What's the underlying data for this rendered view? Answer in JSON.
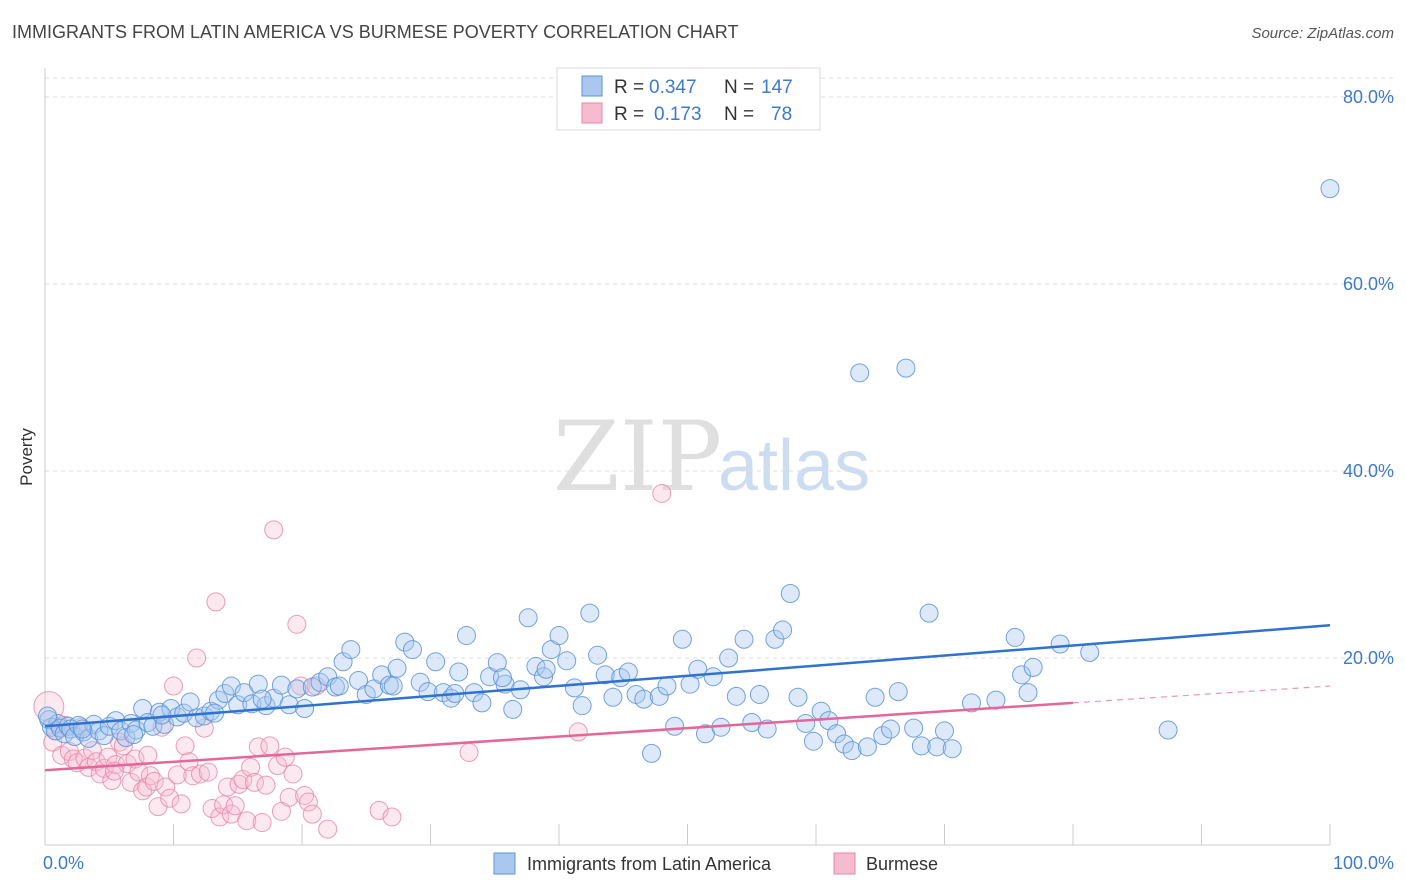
{
  "title": "IMMIGRANTS FROM LATIN AMERICA VS BURMESE POVERTY CORRELATION CHART",
  "source": "Source: ZipAtlas.com",
  "watermark": {
    "zip": "ZIP",
    "atlas": "atlas"
  },
  "legend": {
    "series": [
      {
        "r_label": "R =",
        "r_value": "0.347",
        "n_label": "N =",
        "n_value": "147"
      },
      {
        "r_label": "R =",
        "r_value": "0.173",
        "n_label": "N =",
        "n_value": "78"
      }
    ]
  },
  "colors": {
    "blue_fill": "#aac8ef",
    "blue_stroke": "#5b93d6",
    "blue_line": "#2f72d0",
    "pink_fill": "#f5bcd0",
    "pink_stroke": "#e785a8",
    "pink_line": "#e5679a",
    "tick_text": "#3d7ac9",
    "grid": "#dddddd"
  },
  "chart_data": {
    "type": "scatter",
    "title": "IMMIGRANTS FROM LATIN AMERICA VS BURMESE POVERTY CORRELATION CHART",
    "xlabel": "",
    "ylabel": "Poverty",
    "xlim": [
      0,
      100
    ],
    "ylim": [
      0,
      80
    ],
    "x_tick_labels": [
      "0.0%",
      "100.0%"
    ],
    "y_ticks": [
      20,
      40,
      60,
      80
    ],
    "y_tick_labels": [
      "20.0%",
      "40.0%",
      "60.0%",
      "80.0%"
    ],
    "grid": true,
    "series": [
      {
        "name": "Immigrants from Latin America",
        "color": "#5b93d6",
        "r": 0.347,
        "n": 147,
        "trend": {
          "x": [
            0,
            100
          ],
          "y": [
            12.7,
            23.5
          ]
        },
        "points": [
          [
            0.3,
            13.4
          ],
          [
            0.5,
            12.6
          ],
          [
            0.8,
            12.2
          ],
          [
            1.0,
            13.0
          ],
          [
            1.2,
            12.5
          ],
          [
            1.5,
            11.9
          ],
          [
            1.8,
            12.7
          ],
          [
            2.0,
            12.4
          ],
          [
            2.3,
            11.6
          ],
          [
            2.6,
            12.8
          ],
          [
            3.0,
            12.1
          ],
          [
            3.4,
            11.4
          ],
          [
            3.8,
            12.9
          ],
          [
            4.2,
            12.2
          ],
          [
            4.6,
            11.7
          ],
          [
            5.0,
            12.7
          ],
          [
            5.5,
            13.3
          ],
          [
            5.9,
            12.2
          ],
          [
            6.3,
            11.5
          ],
          [
            6.7,
            13.0
          ],
          [
            7.1,
            12.3
          ],
          [
            7.6,
            14.6
          ],
          [
            8.0,
            13.1
          ],
          [
            8.4,
            12.7
          ],
          [
            8.9,
            14.2
          ],
          [
            9.3,
            12.9
          ],
          [
            9.8,
            14.6
          ],
          [
            10.3,
            13.7
          ],
          [
            10.8,
            14.1
          ],
          [
            11.3,
            15.3
          ],
          [
            11.8,
            13.6
          ],
          [
            12.4,
            13.8
          ],
          [
            12.9,
            14.3
          ],
          [
            13.5,
            15.5
          ],
          [
            14.0,
            16.2
          ],
          [
            14.5,
            17.0
          ],
          [
            15.0,
            15.0
          ],
          [
            15.5,
            16.3
          ],
          [
            16.1,
            15.1
          ],
          [
            16.6,
            17.2
          ],
          [
            17.2,
            14.9
          ],
          [
            17.8,
            15.7
          ],
          [
            18.4,
            17.1
          ],
          [
            19.0,
            15.0
          ],
          [
            19.6,
            16.7
          ],
          [
            20.2,
            14.6
          ],
          [
            20.8,
            16.9
          ],
          [
            21.4,
            17.4
          ],
          [
            22.0,
            18.0
          ],
          [
            22.6,
            16.9
          ],
          [
            23.2,
            19.6
          ],
          [
            23.8,
            20.9
          ],
          [
            24.4,
            17.6
          ],
          [
            25.0,
            16.1
          ],
          [
            25.6,
            16.7
          ],
          [
            26.2,
            18.2
          ],
          [
            26.8,
            17.1
          ],
          [
            27.4,
            18.9
          ],
          [
            28.0,
            21.7
          ],
          [
            28.6,
            20.9
          ],
          [
            29.2,
            17.4
          ],
          [
            29.8,
            16.4
          ],
          [
            30.4,
            19.6
          ],
          [
            31.0,
            16.3
          ],
          [
            31.6,
            15.7
          ],
          [
            32.2,
            18.5
          ],
          [
            32.8,
            22.4
          ],
          [
            33.4,
            16.3
          ],
          [
            34.0,
            15.2
          ],
          [
            34.6,
            18.0
          ],
          [
            35.2,
            19.5
          ],
          [
            35.8,
            17.2
          ],
          [
            36.4,
            14.5
          ],
          [
            37.0,
            16.6
          ],
          [
            37.6,
            24.3
          ],
          [
            38.2,
            19.1
          ],
          [
            38.8,
            18.0
          ],
          [
            39.4,
            20.9
          ],
          [
            40.0,
            22.4
          ],
          [
            40.6,
            19.7
          ],
          [
            41.2,
            16.8
          ],
          [
            41.8,
            14.9
          ],
          [
            42.4,
            24.8
          ],
          [
            43.0,
            20.3
          ],
          [
            43.6,
            18.2
          ],
          [
            44.2,
            15.8
          ],
          [
            44.8,
            17.9
          ],
          [
            45.4,
            18.5
          ],
          [
            46.0,
            16.1
          ],
          [
            46.6,
            15.6
          ],
          [
            47.2,
            9.8
          ],
          [
            47.8,
            15.9
          ],
          [
            48.4,
            17.0
          ],
          [
            49.0,
            12.7
          ],
          [
            49.6,
            22.0
          ],
          [
            50.2,
            17.2
          ],
          [
            50.8,
            18.8
          ],
          [
            51.4,
            11.9
          ],
          [
            52.0,
            18.0
          ],
          [
            52.6,
            12.6
          ],
          [
            53.2,
            20.0
          ],
          [
            53.8,
            15.9
          ],
          [
            54.4,
            22.0
          ],
          [
            55.0,
            13.1
          ],
          [
            55.6,
            16.1
          ],
          [
            56.2,
            12.4
          ],
          [
            56.8,
            22.0
          ],
          [
            57.4,
            23.0
          ],
          [
            58.0,
            26.9
          ],
          [
            58.6,
            15.8
          ],
          [
            59.2,
            13.0
          ],
          [
            59.8,
            11.1
          ],
          [
            60.4,
            14.3
          ],
          [
            61.0,
            13.3
          ],
          [
            61.6,
            11.9
          ],
          [
            62.2,
            10.8
          ],
          [
            62.8,
            10.1
          ],
          [
            63.4,
            50.5
          ],
          [
            64.0,
            10.5
          ],
          [
            64.6,
            15.8
          ],
          [
            65.2,
            11.7
          ],
          [
            65.8,
            12.4
          ],
          [
            66.4,
            16.4
          ],
          [
            67.0,
            51.0
          ],
          [
            67.6,
            12.5
          ],
          [
            68.2,
            10.6
          ],
          [
            68.8,
            24.8
          ],
          [
            69.4,
            10.5
          ],
          [
            70.0,
            12.2
          ],
          [
            70.6,
            10.3
          ],
          [
            72.1,
            15.2
          ],
          [
            74.0,
            15.5
          ],
          [
            75.5,
            22.2
          ],
          [
            76.0,
            18.2
          ],
          [
            76.5,
            16.3
          ],
          [
            76.9,
            19.0
          ],
          [
            79.0,
            21.5
          ],
          [
            81.3,
            20.6
          ],
          [
            87.4,
            12.3
          ],
          [
            100.0,
            70.2
          ],
          [
            0.2,
            13.8
          ],
          [
            2.9,
            12.4
          ],
          [
            6.9,
            11.8
          ],
          [
            9.1,
            13.9
          ],
          [
            13.2,
            14.1
          ],
          [
            16.9,
            15.6
          ],
          [
            22.9,
            17.0
          ],
          [
            27.1,
            17.0
          ],
          [
            31.9,
            16.2
          ],
          [
            35.6,
            17.9
          ],
          [
            39.0,
            18.8
          ]
        ]
      },
      {
        "name": "Burmese",
        "color": "#e785a8",
        "r": 0.173,
        "n": 78,
        "trend": {
          "x": [
            0,
            80
          ],
          "y": [
            8.0,
            15.2
          ]
        },
        "trend_dashed": {
          "x": [
            80,
            100
          ],
          "y": [
            15.2,
            17.0
          ]
        },
        "points": [
          [
            0.3,
            14.8
          ],
          [
            0.6,
            11.0
          ],
          [
            0.9,
            12.2
          ],
          [
            1.3,
            9.6
          ],
          [
            1.6,
            12.8
          ],
          [
            1.9,
            10.0
          ],
          [
            2.2,
            9.2
          ],
          [
            2.5,
            8.8
          ],
          [
            2.8,
            12.6
          ],
          [
            3.1,
            9.3
          ],
          [
            3.4,
            8.3
          ],
          [
            3.7,
            10.1
          ],
          [
            4.0,
            8.9
          ],
          [
            4.3,
            7.6
          ],
          [
            4.6,
            8.2
          ],
          [
            4.9,
            9.4
          ],
          [
            5.2,
            6.9
          ],
          [
            5.5,
            8.6
          ],
          [
            5.8,
            11.0
          ],
          [
            6.1,
            10.6
          ],
          [
            6.4,
            8.7
          ],
          [
            6.7,
            6.7
          ],
          [
            7.0,
            9.2
          ],
          [
            7.3,
            7.8
          ],
          [
            7.6,
            5.8
          ],
          [
            7.9,
            6.2
          ],
          [
            8.2,
            7.4
          ],
          [
            8.5,
            6.8
          ],
          [
            8.8,
            4.1
          ],
          [
            9.1,
            12.6
          ],
          [
            9.4,
            6.2
          ],
          [
            9.7,
            5.0
          ],
          [
            10.0,
            17.0
          ],
          [
            10.3,
            7.5
          ],
          [
            10.6,
            4.4
          ],
          [
            10.9,
            10.6
          ],
          [
            11.2,
            8.9
          ],
          [
            11.5,
            7.4
          ],
          [
            11.8,
            20.0
          ],
          [
            12.1,
            7.6
          ],
          [
            12.4,
            12.5
          ],
          [
            12.7,
            7.8
          ],
          [
            13.0,
            3.9
          ],
          [
            13.3,
            26.0
          ],
          [
            13.6,
            3.0
          ],
          [
            13.9,
            4.3
          ],
          [
            14.2,
            6.2
          ],
          [
            14.5,
            3.3
          ],
          [
            14.8,
            4.2
          ],
          [
            15.1,
            6.5
          ],
          [
            15.4,
            7.0
          ],
          [
            15.7,
            2.6
          ],
          [
            16.0,
            8.3
          ],
          [
            16.3,
            6.7
          ],
          [
            16.6,
            10.5
          ],
          [
            16.9,
            2.4
          ],
          [
            17.2,
            6.4
          ],
          [
            17.5,
            10.6
          ],
          [
            17.8,
            33.7
          ],
          [
            18.1,
            8.5
          ],
          [
            18.4,
            3.6
          ],
          [
            18.7,
            9.4
          ],
          [
            19.0,
            5.1
          ],
          [
            19.3,
            7.6
          ],
          [
            19.6,
            23.6
          ],
          [
            19.9,
            17.0
          ],
          [
            20.2,
            5.3
          ],
          [
            20.5,
            4.6
          ],
          [
            20.8,
            3.3
          ],
          [
            21.1,
            17.0
          ],
          [
            22.0,
            1.7
          ],
          [
            26.0,
            3.7
          ],
          [
            27.0,
            3.0
          ],
          [
            33.0,
            9.9
          ],
          [
            41.5,
            12.1
          ],
          [
            48.0,
            37.6
          ],
          [
            5.4,
            7.9
          ],
          [
            8.0,
            9.6
          ]
        ]
      }
    ]
  },
  "bottom_legend": {
    "items": [
      "Immigrants from Latin America",
      "Burmese"
    ]
  }
}
